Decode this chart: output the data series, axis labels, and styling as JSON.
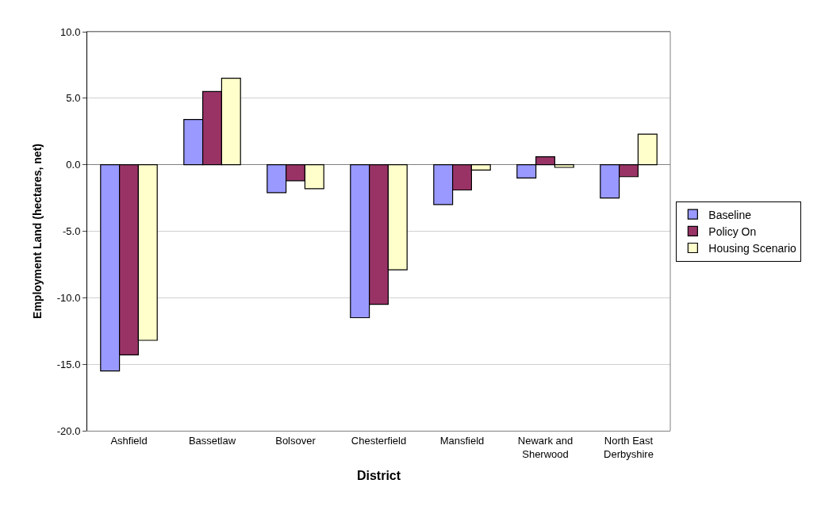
{
  "chart_data": {
    "type": "bar",
    "xlabel": "District",
    "ylabel": "Employment Land (hectares, net)",
    "categories": [
      "Ashfield",
      "Bassetlaw",
      "Bolsover",
      "Chesterfield",
      "Mansfield",
      "Newark and\nSherwood",
      "North East\nDerbyshire"
    ],
    "series": [
      {
        "name": "Baseline",
        "color": "#9999ff",
        "values": [
          -15.5,
          3.4,
          -2.1,
          -11.5,
          -3.0,
          -1.0,
          -2.5
        ]
      },
      {
        "name": "Policy On",
        "color": "#993366",
        "values": [
          -14.3,
          5.5,
          -1.2,
          -10.5,
          -1.9,
          0.6,
          -0.9
        ]
      },
      {
        "name": "Housing Scenario",
        "color": "#ffffcc",
        "values": [
          -13.2,
          6.5,
          -1.8,
          -7.9,
          -0.4,
          -0.2,
          2.3
        ]
      }
    ],
    "ylim": [
      -20,
      10
    ],
    "yticks": [
      {
        "value": -20,
        "label": "-20.0"
      },
      {
        "value": -15,
        "label": "-15.0"
      },
      {
        "value": -10,
        "label": "-10.0"
      },
      {
        "value": -5,
        "label": "-5.0"
      },
      {
        "value": 0,
        "label": "0.0"
      },
      {
        "value": 5,
        "label": "5.0"
      },
      {
        "value": 10,
        "label": "10.0"
      }
    ],
    "grid": "y",
    "legend": "right"
  }
}
